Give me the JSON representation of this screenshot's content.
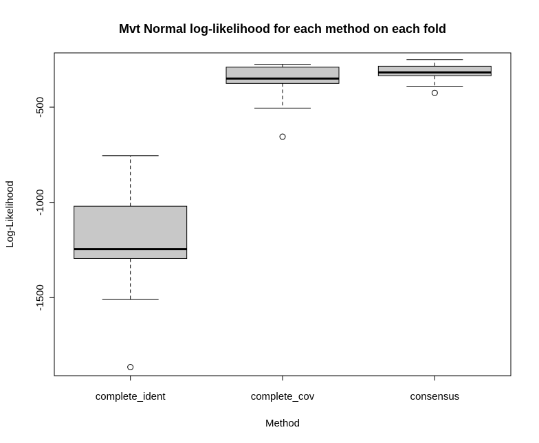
{
  "chart_data": {
    "type": "boxplot",
    "title": "Mvt Normal log-likelihood for each method on each fold",
    "xlabel": "Method",
    "ylabel": "Log-Likelihood",
    "categories": [
      "complete_ident",
      "complete_cov",
      "consensus"
    ],
    "yticks": [
      -500,
      -1000,
      -1500
    ],
    "ytick_labels": [
      "-500",
      "-1000",
      "-1500"
    ],
    "ylim": [
      -1910,
      -215
    ],
    "box_color": "#c8c8c8",
    "boxes": [
      {
        "name": "complete_ident",
        "whisker_low": -1510,
        "q1": -1295,
        "median": -1245,
        "q3": -1020,
        "whisker_high": -755,
        "outliers": [
          -1865
        ]
      },
      {
        "name": "complete_cov",
        "whisker_low": -505,
        "q1": -375,
        "median": -350,
        "q3": -290,
        "whisker_high": -275,
        "outliers": [
          -655
        ]
      },
      {
        "name": "consensus",
        "whisker_low": -390,
        "q1": -335,
        "median": -318,
        "q3": -285,
        "whisker_high": -250,
        "outliers": [
          -425
        ]
      }
    ]
  }
}
